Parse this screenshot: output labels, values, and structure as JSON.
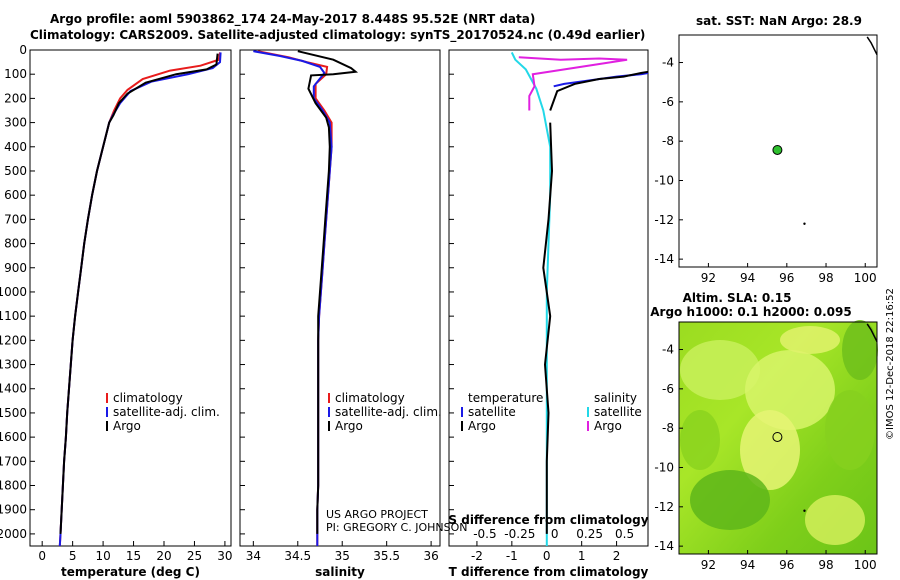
{
  "header": {
    "line1": "Argo profile: aoml 5903862_174 24-May-2017 8.448S 95.52E (NRT data)",
    "line2": "Climatology: CARS2009. Satellite-adjusted climatology: synTS_20170524.nc (0.49d earlier)"
  },
  "credits": {
    "project": "US ARGO PROJECT",
    "pi": "PI: GREGORY C. JOHNSON"
  },
  "watermark": "©IMOS 12-Dec-2018 22:16:52",
  "colors": {
    "clim": "#e81c1c",
    "sat": "#1a1ae6",
    "argo": "#000000",
    "tsat": "#22d8e8",
    "sargo": "#e020e0"
  },
  "chart_data": [
    {
      "type": "line",
      "id": "temperature",
      "xlabel": "temperature (deg C)",
      "ylabel": "",
      "xlim": [
        -2,
        31
      ],
      "ylim": [
        2050,
        0
      ],
      "xticks": [
        0,
        5,
        10,
        15,
        20,
        25,
        30
      ],
      "yticks": [
        0,
        100,
        200,
        300,
        400,
        500,
        600,
        700,
        800,
        900,
        1000,
        1100,
        1200,
        1300,
        1400,
        1500,
        1600,
        1700,
        1800,
        1900,
        2000
      ],
      "legend": [
        "climatology",
        "satellite-adj. clim.",
        "Argo"
      ],
      "series": [
        {
          "name": "climatology",
          "color": "clim",
          "points": [
            [
              29.2,
              10
            ],
            [
              29.0,
              40
            ],
            [
              26,
              65
            ],
            [
              21,
              85
            ],
            [
              16.5,
              120
            ],
            [
              14,
              165
            ],
            [
              12.8,
              200
            ],
            [
              11.8,
              250
            ],
            [
              11,
              300
            ],
            [
              10,
              400
            ],
            [
              9.0,
              500
            ],
            [
              8.2,
              600
            ],
            [
              7.5,
              700
            ],
            [
              6.9,
              800
            ],
            [
              6.4,
              900
            ],
            [
              5.9,
              1000
            ],
            [
              5.4,
              1100
            ],
            [
              5.0,
              1200
            ],
            [
              4.7,
              1300
            ],
            [
              4.4,
              1400
            ],
            [
              4.1,
              1500
            ],
            [
              3.9,
              1600
            ],
            [
              3.6,
              1700
            ],
            [
              3.4,
              1800
            ],
            [
              3.2,
              1900
            ],
            [
              3.0,
              2000
            ],
            [
              2.9,
              2050
            ]
          ]
        },
        {
          "name": "satellite-adj. clim.",
          "color": "sat",
          "points": [
            [
              29.3,
              10
            ],
            [
              29.2,
              50
            ],
            [
              28,
              75
            ],
            [
              24,
              100
            ],
            [
              18,
              130
            ],
            [
              14.5,
              170
            ],
            [
              12.8,
              220
            ],
            [
              11.6,
              270
            ],
            [
              11,
              300
            ],
            [
              10,
              400
            ],
            [
              9.0,
              500
            ],
            [
              8.2,
              600
            ],
            [
              7.5,
              700
            ],
            [
              6.9,
              800
            ],
            [
              6.4,
              900
            ],
            [
              5.9,
              1000
            ],
            [
              5.4,
              1100
            ],
            [
              5.0,
              1200
            ],
            [
              4.7,
              1300
            ],
            [
              4.4,
              1400
            ],
            [
              4.1,
              1500
            ],
            [
              3.9,
              1600
            ],
            [
              3.6,
              1700
            ],
            [
              3.4,
              1800
            ],
            [
              3.2,
              1900
            ],
            [
              3.0,
              2000
            ],
            [
              2.9,
              2050
            ]
          ]
        },
        {
          "name": "Argo",
          "color": "argo",
          "points": [
            [
              28.8,
              15
            ],
            [
              28.6,
              60
            ],
            [
              27,
              80
            ],
            [
              22,
              100
            ],
            [
              17,
              135
            ],
            [
              14,
              180
            ],
            [
              12.6,
              220
            ],
            [
              11.7,
              270
            ],
            [
              11,
              300
            ],
            [
              10,
              400
            ],
            [
              9.0,
              500
            ],
            [
              8.2,
              600
            ],
            [
              7.5,
              700
            ],
            [
              6.9,
              800
            ],
            [
              6.4,
              900
            ],
            [
              5.9,
              1000
            ],
            [
              5.4,
              1100
            ],
            [
              5.0,
              1200
            ],
            [
              4.7,
              1300
            ],
            [
              4.4,
              1400
            ],
            [
              4.1,
              1500
            ],
            [
              3.9,
              1600
            ],
            [
              3.6,
              1700
            ],
            [
              3.4,
              1800
            ],
            [
              3.2,
              1900
            ],
            [
              3.0,
              2000
            ]
          ]
        }
      ]
    },
    {
      "type": "line",
      "id": "salinity",
      "xlabel": "salinity",
      "xlim": [
        33.85,
        36.1
      ],
      "ylim": [
        2050,
        0
      ],
      "xticks": [
        34,
        34.5,
        35,
        35.5,
        36
      ],
      "legend": [
        "climatology",
        "satellite-adj. clim.",
        "Argo"
      ],
      "series": [
        {
          "name": "climatology",
          "color": "clim",
          "points": [
            [
              34.05,
              5
            ],
            [
              34.4,
              30
            ],
            [
              34.6,
              50
            ],
            [
              34.83,
              70
            ],
            [
              34.82,
              100
            ],
            [
              34.7,
              140
            ],
            [
              34.7,
              200
            ],
            [
              34.8,
              250
            ],
            [
              34.88,
              300
            ],
            [
              34.88,
              400
            ],
            [
              34.86,
              500
            ],
            [
              34.84,
              600
            ],
            [
              34.82,
              700
            ],
            [
              34.8,
              800
            ],
            [
              34.78,
              900
            ],
            [
              34.76,
              1000
            ],
            [
              34.74,
              1100
            ],
            [
              34.73,
              1200
            ],
            [
              34.73,
              1300
            ],
            [
              34.73,
              1400
            ],
            [
              34.73,
              1500
            ],
            [
              34.73,
              1600
            ],
            [
              34.73,
              1700
            ],
            [
              34.73,
              1800
            ],
            [
              34.72,
              1900
            ],
            [
              34.72,
              2000
            ],
            [
              34.72,
              2050
            ]
          ]
        },
        {
          "name": "satellite-adj. clim.",
          "color": "sat",
          "points": [
            [
              34.0,
              5
            ],
            [
              34.3,
              25
            ],
            [
              34.55,
              45
            ],
            [
              34.75,
              70
            ],
            [
              34.8,
              95
            ],
            [
              34.68,
              150
            ],
            [
              34.68,
              200
            ],
            [
              34.78,
              250
            ],
            [
              34.86,
              300
            ],
            [
              34.88,
              400
            ],
            [
              34.86,
              500
            ],
            [
              34.84,
              600
            ],
            [
              34.82,
              700
            ],
            [
              34.8,
              800
            ],
            [
              34.78,
              900
            ],
            [
              34.76,
              1000
            ],
            [
              34.74,
              1100
            ],
            [
              34.73,
              1200
            ],
            [
              34.73,
              1300
            ],
            [
              34.73,
              1400
            ],
            [
              34.73,
              1500
            ],
            [
              34.73,
              1600
            ],
            [
              34.73,
              1700
            ],
            [
              34.73,
              1800
            ],
            [
              34.72,
              1900
            ],
            [
              34.72,
              2000
            ],
            [
              34.72,
              2050
            ]
          ]
        },
        {
          "name": "Argo",
          "color": "argo",
          "points": [
            [
              34.5,
              5
            ],
            [
              34.9,
              40
            ],
            [
              35.1,
              75
            ],
            [
              35.15,
              90
            ],
            [
              34.9,
              100
            ],
            [
              34.65,
              105
            ],
            [
              34.62,
              160
            ],
            [
              34.7,
              220
            ],
            [
              34.82,
              280
            ],
            [
              34.85,
              320
            ],
            [
              34.86,
              400
            ],
            [
              34.85,
              500
            ],
            [
              34.83,
              600
            ],
            [
              34.81,
              700
            ],
            [
              34.79,
              800
            ],
            [
              34.77,
              900
            ],
            [
              34.75,
              1000
            ],
            [
              34.73,
              1100
            ],
            [
              34.73,
              1200
            ],
            [
              34.73,
              1300
            ],
            [
              34.73,
              1400
            ],
            [
              34.73,
              1500
            ],
            [
              34.73,
              1600
            ],
            [
              34.73,
              1700
            ],
            [
              34.73,
              1800
            ],
            [
              34.72,
              1900
            ],
            [
              34.72,
              2000
            ]
          ]
        }
      ]
    },
    {
      "type": "line",
      "id": "differences",
      "xlabel": "T difference from climatology",
      "xlabel2": "S difference from climatology",
      "xlim": [
        -2.8,
        2.9
      ],
      "ylim": [
        2050,
        0
      ],
      "xticks": [
        -2,
        -1,
        0,
        1,
        2
      ],
      "xticks2": [
        -0.5,
        -0.25,
        0,
        0.25,
        0.5
      ],
      "legend_t": [
        "temperature",
        "satellite",
        "Argo"
      ],
      "legend_s": [
        "salinity",
        "satellite",
        "Argo"
      ],
      "series": [
        {
          "name": "satellite T diff",
          "color": "sat",
          "points": [
            [
              0.2,
              150
            ],
            [
              0.5,
              140
            ],
            [
              1.0,
              130
            ],
            [
              2.0,
              110
            ],
            [
              2.7,
              100
            ],
            [
              2.9,
              95
            ]
          ]
        },
        {
          "name": "Argo T diff",
          "color": "argo",
          "points": [
            [
              0.1,
              250
            ],
            [
              0.3,
              170
            ],
            [
              0.8,
              140
            ],
            [
              1.5,
              120
            ],
            [
              2.2,
              110
            ],
            [
              2.7,
              95
            ],
            [
              2.9,
              90
            ]
          ]
        },
        {
          "name": "satellite S diff",
          "color": "tsat",
          "points": [
            [
              -1,
              10
            ],
            [
              -0.9,
              40
            ],
            [
              -0.6,
              80
            ],
            [
              -0.3,
              160
            ],
            [
              -0.1,
              250
            ],
            [
              0.1,
              400
            ],
            [
              0.1,
              600
            ],
            [
              0.05,
              800
            ],
            [
              0,
              1000
            ],
            [
              0,
              1500
            ],
            [
              0,
              2050
            ]
          ]
        },
        {
          "name": "Argo S diff",
          "color": "sargo",
          "points": [
            [
              -0.8,
              30
            ],
            [
              0.4,
              40
            ],
            [
              1.5,
              35
            ],
            [
              2.3,
              40
            ],
            [
              -0.4,
              100
            ],
            [
              -0.35,
              150
            ],
            [
              -0.5,
              190
            ],
            [
              -0.5,
              250
            ]
          ]
        },
        {
          "name": "Argo T diff deep",
          "color": "argo",
          "points": [
            [
              0.1,
              300
            ],
            [
              0.15,
              500
            ],
            [
              0.05,
              700
            ],
            [
              -0.1,
              900
            ],
            [
              0.1,
              1100
            ],
            [
              -0.05,
              1300
            ],
            [
              0.05,
              1500
            ],
            [
              0,
              1700
            ],
            [
              0,
              2000
            ]
          ]
        }
      ]
    },
    {
      "type": "scatter",
      "id": "sst-map",
      "title": "sat. SST: NaN Argo: 28.9",
      "xlim": [
        90.5,
        100.6
      ],
      "ylim": [
        -14.4,
        -2.6
      ],
      "xticks": [
        92,
        94,
        96,
        98,
        100
      ],
      "yticks": [
        -4,
        -6,
        -8,
        -10,
        -12,
        -14
      ],
      "points": [
        {
          "lon": 95.52,
          "lat": -8.448,
          "label": "Argo"
        }
      ]
    },
    {
      "type": "heatmap",
      "id": "sla-map",
      "title": "Altim. SLA: 0.15",
      "subtitle": "Argo h1000: 0.1 h2000: 0.095",
      "xlim": [
        90.5,
        100.6
      ],
      "ylim": [
        -14.4,
        -2.6
      ],
      "xticks": [
        92,
        94,
        96,
        98,
        100
      ],
      "yticks": [
        -4,
        -6,
        -8,
        -10,
        -12,
        -14
      ],
      "points": [
        {
          "lon": 95.52,
          "lat": -8.448,
          "label": "Argo"
        }
      ]
    }
  ]
}
